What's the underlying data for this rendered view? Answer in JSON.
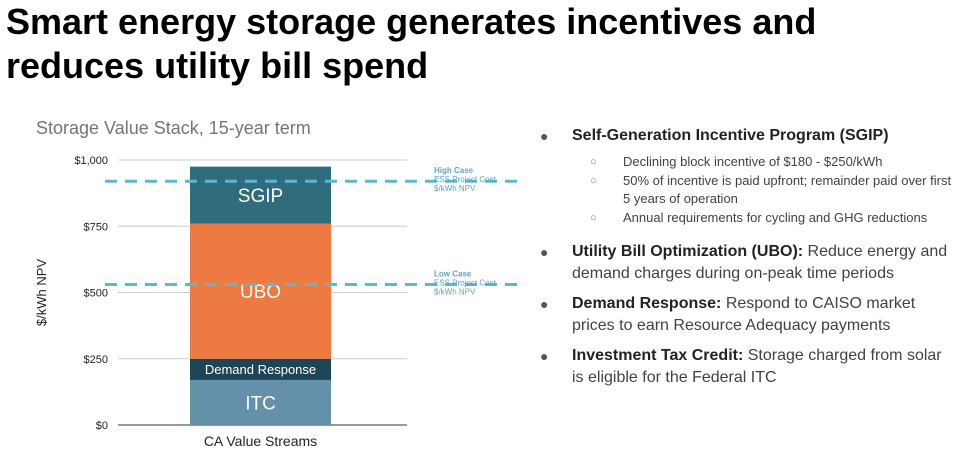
{
  "title": "Smart energy storage generates incentives and reduces utility bill spend",
  "chart_data": {
    "type": "bar",
    "stacked": true,
    "title": "Storage Value Stack, 15-year term",
    "ylabel": "$/kWh NPV",
    "xlabel": "",
    "categories": [
      "CA Value Streams"
    ],
    "ylim": [
      0,
      1000
    ],
    "yticks": [
      0,
      250,
      500,
      750,
      1000
    ],
    "ytick_labels": [
      "$0",
      "$250",
      "$500",
      "$750",
      "$1,000"
    ],
    "grid": true,
    "series": [
      {
        "name": "ITC",
        "values": [
          170
        ],
        "color": "#6590a9"
      },
      {
        "name": "Demand Response",
        "values": [
          80
        ],
        "color": "#1e4556"
      },
      {
        "name": "UBO",
        "values": [
          510
        ],
        "color": "#ed7a42"
      },
      {
        "name": "SGIP",
        "values": [
          215
        ],
        "color": "#2f6d7e"
      }
    ],
    "reference_lines": [
      {
        "value": 920,
        "label_lines": [
          "High Case",
          "ESS Project Cost",
          "$/kWh NPV"
        ],
        "color": "#5bb8d0"
      },
      {
        "value": 530,
        "label_lines": [
          "Low Case",
          "ESS Project Cost",
          "$/kWh NPV"
        ],
        "color": "#5bb8d0"
      }
    ]
  },
  "bullets": [
    {
      "bold": "Self-Generation Incentive Program (SGIP)",
      "text": "",
      "subs": [
        "Declining block incentive of $180 - $250/kWh",
        "50% of incentive is paid upfront; remainder paid over first 5 years of operation",
        "Annual requirements for cycling and GHG reductions"
      ]
    },
    {
      "bold": "Utility Bill Optimization (UBO):",
      "text": " Reduce energy and demand charges during on-peak time periods"
    },
    {
      "bold": "Demand Response:",
      "text": " Respond to CAISO market prices to earn Resource Adequacy payments"
    },
    {
      "bold": "Investment Tax Credit:",
      "text": " Storage charged from solar is eligible for the Federal ITC"
    }
  ]
}
